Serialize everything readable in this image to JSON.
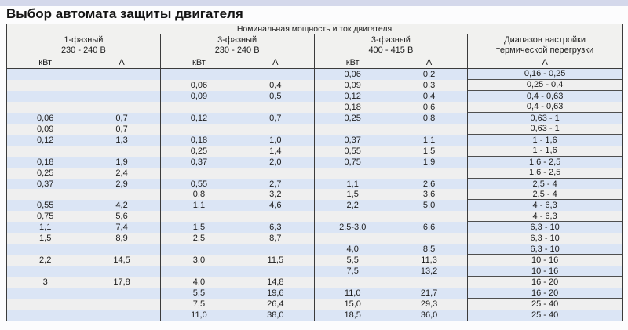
{
  "page": {
    "title": "Выбор автомата защиты двигателя"
  },
  "colors": {
    "top-band": "#d4d8eb",
    "header-bg": "#f1f1ef",
    "row-blue": "#dbe5f5",
    "row-gray": "#efefef",
    "border-dark": "#3b3b3b",
    "range-divider": "#4f4f4f"
  },
  "table": {
    "merged_header": "Номинальная мощность и ток двигателя",
    "groups": [
      {
        "line1": "1-фазный",
        "line2": "230 - 240 В"
      },
      {
        "line1": "3-фазный",
        "line2": "230 - 240 В"
      },
      {
        "line1": "3-фазный",
        "line2": "400 - 415 В"
      },
      {
        "line1": "Диапазон настройки",
        "line2": "термической перегрузки"
      }
    ],
    "subheaders": [
      "кВт",
      "А",
      "кВт",
      "А",
      "кВт",
      "А",
      "А"
    ],
    "rows": [
      [
        "",
        "",
        "",
        "",
        "0,06",
        "0,2",
        "0,16 - 0,25"
      ],
      [
        "",
        "",
        "0,06",
        "0,4",
        "0,09",
        "0,3",
        "0,25 - 0,4"
      ],
      [
        "",
        "",
        "0,09",
        "0,5",
        "0,12",
        "0,4",
        "0,4 - 0,63"
      ],
      [
        "",
        "",
        "",
        "",
        "0,18",
        "0,6",
        "0,4 - 0,63"
      ],
      [
        "0,06",
        "0,7",
        "0,12",
        "0,7",
        "0,25",
        "0,8",
        "0,63 - 1"
      ],
      [
        "0,09",
        "0,7",
        "",
        "",
        "",
        "",
        "0,63 - 1"
      ],
      [
        "0,12",
        "1,3",
        "0,18",
        "1,0",
        "0,37",
        "1,1",
        "1 - 1,6"
      ],
      [
        "",
        "",
        "0,25",
        "1,4",
        "0,55",
        "1,5",
        "1 - 1,6"
      ],
      [
        "0,18",
        "1,9",
        "0,37",
        "2,0",
        "0,75",
        "1,9",
        "1,6 - 2,5"
      ],
      [
        "0,25",
        "2,4",
        "",
        "",
        "",
        "",
        "1,6 - 2,5"
      ],
      [
        "0,37",
        "2,9",
        "0,55",
        "2,7",
        "1,1",
        "2,6",
        "2,5 - 4"
      ],
      [
        "",
        "",
        "0,8",
        "3,2",
        "1,5",
        "3,6",
        "2,5 - 4"
      ],
      [
        "0,55",
        "4,2",
        "1,1",
        "4,6",
        "2,2",
        "5,0",
        "4 - 6,3"
      ],
      [
        "0,75",
        "5,6",
        "",
        "",
        "",
        "",
        "4 - 6,3"
      ],
      [
        "1,1",
        "7,4",
        "1,5",
        "6,3",
        "2,5-3,0",
        "6,6",
        "6,3 - 10"
      ],
      [
        "1,5",
        "8,9",
        "2,5",
        "8,7",
        "",
        "",
        "6,3 - 10"
      ],
      [
        "",
        "",
        "",
        "",
        "4,0",
        "8,5",
        "6,3 - 10"
      ],
      [
        "2,2",
        "14,5",
        "3,0",
        "11,5",
        "5,5",
        "11,3",
        "10 - 16"
      ],
      [
        "",
        "",
        "",
        "",
        "7,5",
        "13,2",
        "10 - 16"
      ],
      [
        "3",
        "17,8",
        "4,0",
        "14,8",
        "",
        "",
        "16 - 20"
      ],
      [
        "",
        "",
        "5,5",
        "19,6",
        "11,0",
        "21,7",
        "16 - 20"
      ],
      [
        "",
        "",
        "7,5",
        "26,4",
        "15,0",
        "29,3",
        "25 - 40"
      ],
      [
        "",
        "",
        "11,0",
        "38,0",
        "18,5",
        "36,0",
        "25 - 40"
      ]
    ]
  }
}
